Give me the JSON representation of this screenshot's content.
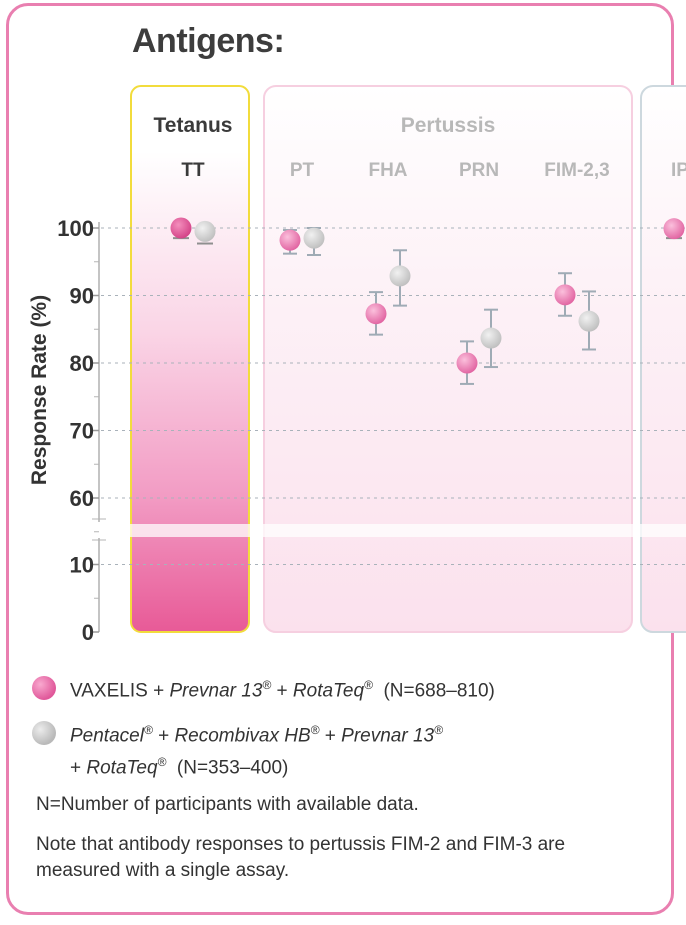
{
  "heading": "Antigens:",
  "chart_data": {
    "type": "scatter",
    "ylabel": "Response Rate (%)",
    "yticks": [
      "100",
      "90",
      "80",
      "70",
      "60",
      "10",
      "0"
    ],
    "axis_break": true,
    "groups": [
      {
        "name": "Tetanus",
        "antigens": [
          "TT"
        ]
      },
      {
        "name": "Pertussis",
        "antigens": [
          "PT",
          "FHA",
          "PRN",
          "FIM-2,3"
        ]
      },
      {
        "name": "",
        "antigens": [
          "IP"
        ]
      }
    ],
    "categories": [
      "TT",
      "PT",
      "FHA",
      "PRN",
      "FIM-2,3",
      "IP"
    ],
    "series": [
      {
        "key": "vaxelis",
        "values": [
          100,
          98.2,
          87.3,
          80.0,
          90.1,
          99.9
        ],
        "ci_low": [
          98.5,
          96.2,
          84.2,
          76.9,
          87.0,
          98.5
        ],
        "ci_high": [
          100,
          99.7,
          90.5,
          83.2,
          93.3,
          100
        ]
      },
      {
        "key": "pentacel",
        "values": [
          99.5,
          98.5,
          92.9,
          83.7,
          86.2,
          null
        ],
        "ci_low": [
          97.7,
          96.0,
          88.5,
          79.4,
          82.0,
          null
        ],
        "ci_high": [
          100,
          100,
          96.7,
          87.9,
          90.6,
          null
        ]
      }
    ]
  },
  "legend": [
    {
      "key": "vaxelis",
      "color": "#e0589a",
      "parts": [
        {
          "t": "VAXELIS + ",
          "i": false
        },
        {
          "t": "Prevnar 13",
          "i": true
        },
        {
          "t": "®",
          "i": true,
          "sup": true
        },
        {
          "t": " + ",
          "i": false
        },
        {
          "t": "RotaTeq",
          "i": true
        },
        {
          "t": "®",
          "i": true,
          "sup": true
        },
        {
          "t": "  (N=688–810)",
          "i": false
        }
      ]
    },
    {
      "key": "pentacel",
      "color": "#b9b9b9",
      "parts": [
        {
          "t": "Pentacel",
          "i": true
        },
        {
          "t": "®",
          "i": true,
          "sup": true
        },
        {
          "t": " + ",
          "i": false
        },
        {
          "t": "Recombivax HB",
          "i": true
        },
        {
          "t": "®",
          "i": true,
          "sup": true
        },
        {
          "t": " + ",
          "i": false
        },
        {
          "t": "Prevnar 13",
          "i": true
        },
        {
          "t": "®",
          "i": true,
          "sup": true
        },
        {
          "t": " ",
          "i": false,
          "br": true
        },
        {
          "t": "+ ",
          "i": false
        },
        {
          "t": "RotaTeq",
          "i": true
        },
        {
          "t": "®",
          "i": true,
          "sup": true
        },
        {
          "t": "  (N=353–400)",
          "i": false
        }
      ]
    }
  ],
  "notes": {
    "n_definition": "N=Number of participants with available data.",
    "fim_note": "Note that antibody responses to pertussis FIM-2 and FIM-3 are measured with a single assay."
  }
}
